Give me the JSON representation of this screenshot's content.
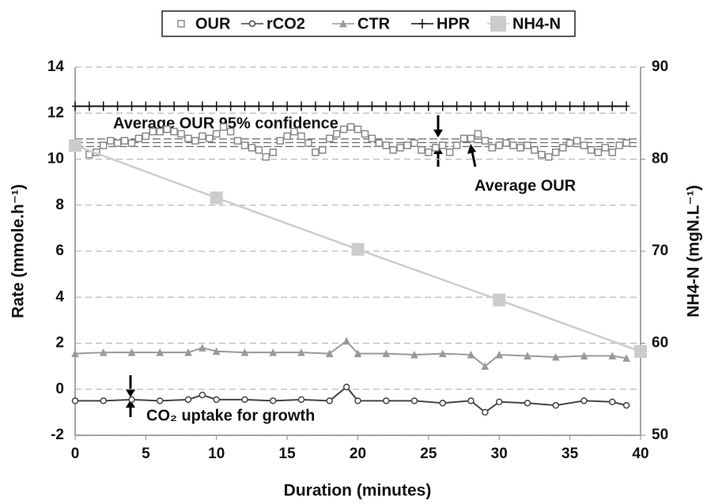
{
  "chart_data": {
    "type": "line",
    "xlabel": "Duration (minutes)",
    "ylabel": "Rate (mmole.h⁻¹)",
    "y2label": "NH4-N (mgN.L⁻¹)",
    "xlim": [
      0,
      40
    ],
    "xticks": [
      0,
      5,
      10,
      15,
      20,
      25,
      30,
      35,
      40
    ],
    "ylim": [
      -2,
      14
    ],
    "yticks": [
      -2,
      0,
      2,
      4,
      6,
      8,
      10,
      12,
      14
    ],
    "y2lim": [
      50,
      90
    ],
    "y2ticks": [
      50,
      60,
      70,
      80,
      90
    ],
    "grid": true,
    "legend": "top",
    "annotations": [
      "Average OUR 95% confidence",
      "Average OUR",
      "CO₂ uptake for growth"
    ],
    "hlines": [
      10.55,
      10.72,
      10.88
    ],
    "series": [
      {
        "name": "OUR",
        "color": "#888888",
        "marker": "open-square",
        "line": false,
        "x": [
          1,
          1.5,
          2,
          2.5,
          3,
          3.5,
          4,
          4.5,
          5,
          5.5,
          6,
          6.5,
          7,
          7.5,
          8,
          8.5,
          9,
          9.5,
          10,
          10.5,
          11,
          11.5,
          12,
          12.5,
          13,
          13.5,
          14,
          14.5,
          15,
          15.5,
          16,
          16.5,
          17,
          17.5,
          18,
          18.5,
          19,
          19.5,
          20,
          20.5,
          21,
          21.5,
          22,
          22.5,
          23,
          23.5,
          24,
          24.5,
          25,
          25.5,
          26,
          26.5,
          27,
          27.5,
          28,
          28.5,
          29,
          29.5,
          30,
          30.5,
          31,
          31.5,
          32,
          32.5,
          33,
          33.5,
          34,
          34.5,
          35,
          35.5,
          36,
          36.5,
          37,
          37.5,
          38,
          38.5,
          39
        ],
        "values": [
          10.2,
          10.3,
          10.6,
          10.8,
          10.7,
          10.8,
          10.7,
          10.9,
          11.0,
          11.2,
          11.2,
          11.3,
          11.2,
          11.1,
          10.9,
          10.8,
          11.0,
          10.9,
          11.1,
          11.4,
          11.2,
          10.8,
          10.6,
          10.5,
          10.4,
          10.1,
          10.3,
          10.8,
          11.0,
          11.2,
          11.0,
          10.7,
          10.3,
          10.4,
          10.9,
          11.1,
          11.3,
          11.4,
          11.3,
          11.1,
          10.9,
          10.7,
          10.6,
          10.4,
          10.5,
          10.6,
          10.7,
          10.4,
          10.3,
          10.5,
          10.6,
          10.3,
          10.6,
          10.9,
          10.9,
          11.1,
          10.8,
          10.5,
          10.6,
          10.7,
          10.6,
          10.5,
          10.6,
          10.4,
          10.2,
          10.1,
          10.3,
          10.5,
          10.7,
          10.8,
          10.6,
          10.4,
          10.3,
          10.5,
          10.3,
          10.6,
          10.7
        ]
      },
      {
        "name": "rCO2",
        "color": "#444444",
        "marker": "circle",
        "line": true,
        "x": [
          0,
          2,
          4,
          6,
          8,
          9,
          10,
          12,
          14,
          16,
          18,
          19.2,
          20,
          22,
          24,
          26,
          28,
          29,
          30,
          32,
          34,
          36,
          38,
          39
        ],
        "values": [
          -0.5,
          -0.5,
          -0.45,
          -0.5,
          -0.45,
          -0.25,
          -0.45,
          -0.45,
          -0.5,
          -0.45,
          -0.5,
          0.1,
          -0.5,
          -0.5,
          -0.5,
          -0.6,
          -0.5,
          -1.0,
          -0.55,
          -0.6,
          -0.7,
          -0.5,
          -0.55,
          -0.7
        ]
      },
      {
        "name": "CTR",
        "color": "#999999",
        "marker": "triangle",
        "line": true,
        "x": [
          0,
          2,
          4,
          6,
          8,
          9,
          10,
          12,
          14,
          16,
          18,
          19.2,
          20,
          22,
          24,
          26,
          28,
          29,
          30,
          32,
          34,
          36,
          38,
          39
        ],
        "values": [
          1.55,
          1.6,
          1.6,
          1.6,
          1.6,
          1.8,
          1.65,
          1.6,
          1.6,
          1.6,
          1.55,
          2.1,
          1.55,
          1.55,
          1.5,
          1.55,
          1.5,
          1.0,
          1.5,
          1.45,
          1.4,
          1.45,
          1.45,
          1.35
        ]
      },
      {
        "name": "HPR",
        "color": "#111111",
        "marker": "plus",
        "line": true,
        "x": [
          0,
          1,
          2,
          3,
          4,
          5,
          6,
          7,
          8,
          9,
          10,
          11,
          12,
          13,
          14,
          15,
          16,
          17,
          18,
          19,
          20,
          21,
          22,
          23,
          24,
          25,
          26,
          27,
          28,
          29,
          30,
          31,
          32,
          33,
          34,
          35,
          36,
          37,
          38,
          39
        ],
        "values": [
          12.3,
          12.3,
          12.3,
          12.3,
          12.3,
          12.3,
          12.3,
          12.3,
          12.3,
          12.3,
          12.3,
          12.3,
          12.3,
          12.3,
          12.3,
          12.3,
          12.3,
          12.3,
          12.3,
          12.3,
          12.3,
          12.3,
          12.3,
          12.3,
          12.3,
          12.3,
          12.3,
          12.3,
          12.3,
          12.3,
          12.3,
          12.3,
          12.3,
          12.3,
          12.3,
          12.3,
          12.3,
          12.3,
          12.3,
          12.3
        ]
      },
      {
        "name": "NH4-N",
        "color": "#cccccc",
        "marker": "filled-square",
        "line": true,
        "axis": "y2",
        "x": [
          0,
          10,
          20,
          30,
          40
        ],
        "values": [
          81.5,
          75.8,
          70.2,
          64.7,
          59.1
        ]
      }
    ]
  }
}
